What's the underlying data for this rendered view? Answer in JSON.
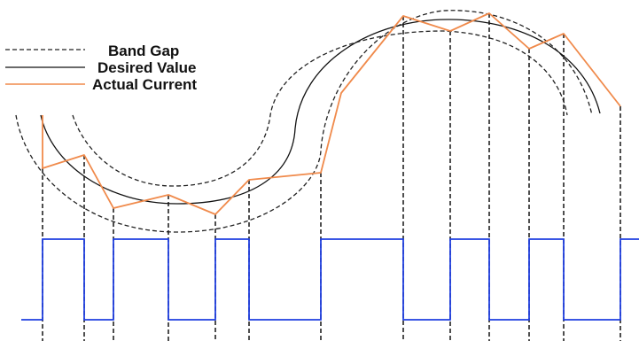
{
  "legend": {
    "band_gap": "Band Gap",
    "desired_value": "Desired Value",
    "actual_current": "Actual Current"
  },
  "colors": {
    "band_gap": "#222222",
    "desired_value": "#111111",
    "actual_current": "#f08a4b",
    "switching_signal": "#1f3fe0",
    "sample_lines": "#222222"
  }
}
